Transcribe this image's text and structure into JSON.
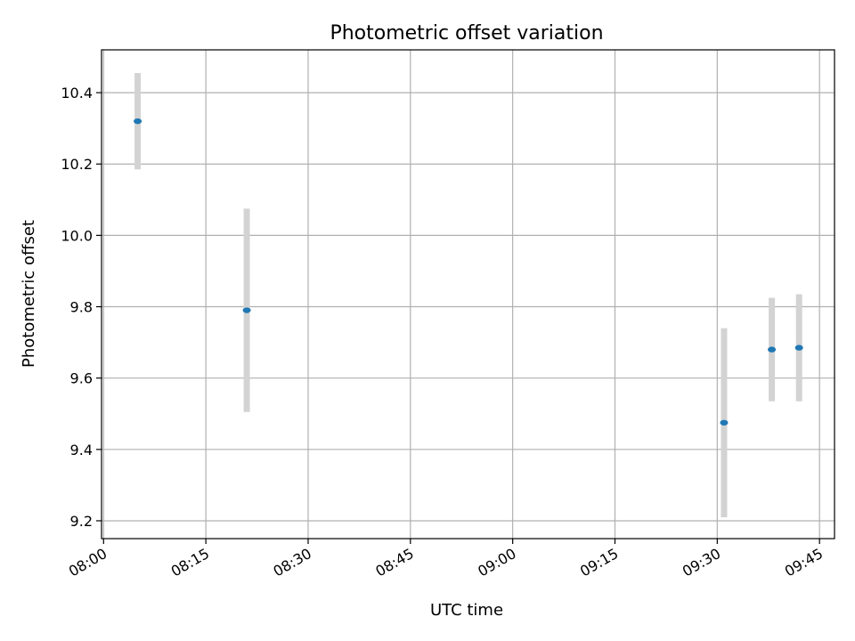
{
  "chart_data": {
    "type": "scatter",
    "title": "Photometric offset variation",
    "xlabel": "UTC time",
    "ylabel": "Photometric offset",
    "x_ticks": [
      "08:00",
      "08:15",
      "08:30",
      "08:45",
      "09:00",
      "09:15",
      "09:30",
      "09:45"
    ],
    "xlim": [
      "07:59.7",
      "09:47.2"
    ],
    "ylim": [
      9.15,
      10.52
    ],
    "y_ticks": [
      9.2,
      9.4,
      9.6,
      9.8,
      10.0,
      10.2,
      10.4
    ],
    "y_tick_labels": [
      "9.2",
      "9.4",
      "9.6",
      "9.8",
      "10.0",
      "10.2",
      "10.4"
    ],
    "grid": true,
    "series": [
      {
        "points": [
          {
            "x": "08:05",
            "y": 10.32,
            "ymin": 10.185,
            "ymax": 10.455
          },
          {
            "x": "08:21",
            "y": 9.79,
            "ymin": 9.505,
            "ymax": 10.075
          },
          {
            "x": "09:31",
            "y": 9.475,
            "ymin": 9.21,
            "ymax": 9.74
          },
          {
            "x": "09:38",
            "y": 9.68,
            "ymin": 9.535,
            "ymax": 9.825
          },
          {
            "x": "09:42",
            "y": 9.685,
            "ymin": 9.535,
            "ymax": 9.835
          }
        ]
      }
    ],
    "colors": {
      "point": "#1f77b4",
      "errorbar": "#d3d3d3"
    }
  }
}
